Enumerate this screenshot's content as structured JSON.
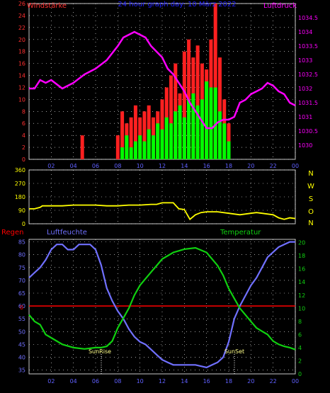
{
  "header": {
    "left_label": "Windstärke",
    "title": "24 hour graph day: 10 März 2022",
    "right_label": "Luftdruck"
  },
  "colors": {
    "background": "#000000",
    "frame": "#c8c8c8",
    "grid": "#ffffff",
    "wind_axis": "#ff3030",
    "pressure": "#ff00ff",
    "gust": "#ff2020",
    "wind_avg": "#00ff00",
    "direction": "#ffff00",
    "humidity": "#7070ff",
    "temperature": "#10d010",
    "rain": "#ff0000",
    "title": "#2020ff"
  },
  "x_ticks": [
    "02",
    "04",
    "06",
    "08",
    "10",
    "12",
    "14",
    "16",
    "18",
    "20",
    "22",
    "00"
  ],
  "direction_panel": {
    "compass_labels": [
      "N",
      "W",
      "S",
      "O",
      "N"
    ]
  },
  "bottom_panel": {
    "rain_label": "Regen",
    "humidity_label": "Luftfeuchte",
    "temperature_label": "Temperatur",
    "rain_tick": "0",
    "sunrise_label": "SunRise",
    "sunset_label": "SunSet"
  },
  "chart_data": [
    {
      "type": "line",
      "panel": "wind_pressure",
      "title": "24 hour graph day: 10 März 2022",
      "x_unit": "hour",
      "xlim": [
        0,
        24
      ],
      "y_left": {
        "label": "Windstärke",
        "ylim": [
          0,
          26
        ],
        "ticks": [
          0,
          2,
          4,
          6,
          8,
          10,
          12,
          14,
          16,
          18,
          20,
          22,
          24,
          26
        ]
      },
      "y_right": {
        "label": "Luftdruck",
        "ylim": [
          1029.5,
          1035
        ],
        "ticks": [
          "1030",
          "1030.5",
          "1031",
          "1031.5",
          "1032",
          "1032.5",
          "1033",
          "1033.5",
          "1034",
          "1034.5"
        ]
      },
      "series": [
        {
          "name": "Luftdruck",
          "axis": "right",
          "x": [
            0,
            0.5,
            1,
            1.5,
            2,
            3,
            3.5,
            4,
            5,
            6,
            7,
            8,
            8.5,
            9,
            9.5,
            10,
            10.5,
            11,
            11.5,
            12,
            12.5,
            13,
            13.5,
            14,
            14.5,
            15,
            15.5,
            16,
            16.5,
            17,
            17.5,
            18,
            18.5,
            19,
            19.5,
            20,
            20.5,
            21,
            21.5,
            22,
            22.5,
            23,
            23.5,
            24
          ],
          "y": [
            1032,
            1032,
            1032.3,
            1032.2,
            1032.3,
            1032,
            1032.1,
            1032.2,
            1032.5,
            1032.7,
            1033,
            1033.5,
            1033.8,
            1033.9,
            1034,
            1033.9,
            1033.8,
            1033.5,
            1033.3,
            1033.1,
            1032.7,
            1032.5,
            1032.2,
            1031.9,
            1031.5,
            1031.2,
            1030.9,
            1030.6,
            1030.6,
            1030.8,
            1030.9,
            1030.9,
            1031,
            1031.5,
            1031.6,
            1031.8,
            1031.9,
            1032,
            1032.2,
            1032.1,
            1031.9,
            1031.8,
            1031.5,
            1031.4
          ]
        },
        {
          "name": "gust",
          "axis": "left",
          "x": [
            4.8,
            8.0,
            8.4,
            8.8,
            9.2,
            9.6,
            10,
            10.4,
            10.8,
            11.2,
            11.6,
            12,
            12.4,
            12.8,
            13.2,
            13.6,
            14,
            14.4,
            14.8,
            15.2,
            15.6,
            16,
            16.4,
            16.8,
            17.2,
            17.6,
            18
          ],
          "y": [
            4,
            4,
            8,
            6,
            7,
            9,
            7,
            8,
            9,
            7,
            8,
            10,
            12,
            14,
            16,
            11,
            18,
            20,
            17,
            19,
            16,
            15,
            20,
            26,
            17,
            10,
            6
          ]
        },
        {
          "name": "average",
          "axis": "left",
          "x": [
            8.4,
            8.8,
            9.2,
            9.6,
            10,
            10.4,
            10.8,
            11.2,
            11.6,
            12,
            12.4,
            12.8,
            13.2,
            13.6,
            14,
            14.4,
            14.8,
            15.2,
            15.6,
            16,
            16.4,
            16.8,
            17.2,
            17.6,
            18
          ],
          "y": [
            2,
            4,
            2,
            3,
            4,
            3,
            5,
            4,
            6,
            5,
            7,
            6,
            8,
            9,
            7,
            10,
            11,
            9,
            10,
            13,
            12,
            12,
            8,
            6,
            3
          ]
        }
      ]
    },
    {
      "type": "line",
      "panel": "wind_direction",
      "xlim": [
        0,
        24
      ],
      "ylim": [
        0,
        360
      ],
      "y_ticks": [
        "0",
        "90",
        "180",
        "270",
        "360"
      ],
      "series": [
        {
          "name": "direction",
          "x": [
            0,
            0.5,
            1,
            1.2,
            2,
            3,
            4,
            5,
            6,
            7,
            8,
            9,
            10,
            11,
            11.5,
            12,
            13,
            13.5,
            14,
            14.5,
            15,
            15.5,
            16,
            17,
            18,
            19,
            20,
            20.5,
            21,
            22,
            22.5,
            23,
            23.5,
            24
          ],
          "y": [
            100,
            100,
            110,
            120,
            120,
            120,
            125,
            125,
            125,
            120,
            120,
            125,
            125,
            130,
            130,
            140,
            140,
            100,
            95,
            30,
            60,
            75,
            80,
            80,
            70,
            60,
            70,
            75,
            70,
            60,
            40,
            30,
            40,
            35
          ]
        }
      ]
    },
    {
      "type": "line",
      "panel": "humidity_temperature",
      "xlim": [
        0,
        24
      ],
      "y_left": {
        "label": "Luftfeuchte",
        "ylim": [
          33.5,
          86
        ],
        "ticks": [
          35,
          40,
          45,
          50,
          55,
          60,
          65,
          70,
          75,
          80,
          85
        ]
      },
      "y_right": {
        "label": "Temperatur",
        "ylim": [
          0,
          20.5
        ],
        "ticks": [
          0,
          2,
          4,
          6,
          8,
          10,
          12,
          14,
          16,
          18,
          20
        ]
      },
      "series": [
        {
          "name": "Luftfeuchte",
          "axis": "left",
          "x": [
            0,
            0.5,
            1,
            1.5,
            2,
            2.5,
            3,
            3.5,
            4,
            4.5,
            5,
            5.5,
            6,
            6.5,
            7,
            7.5,
            8,
            8.5,
            9,
            9.5,
            10,
            10.5,
            11,
            11.5,
            12,
            12.5,
            13,
            14,
            15,
            16,
            16.5,
            17,
            17.5,
            18,
            18.5,
            19,
            19.5,
            20,
            20.5,
            21,
            21.5,
            22,
            22.5,
            23,
            23.5,
            24
          ],
          "y": [
            71,
            73,
            75,
            78,
            82,
            84,
            84,
            82,
            82,
            84,
            84,
            84,
            82,
            76,
            67,
            62,
            58,
            55,
            51,
            48,
            46,
            45,
            43,
            41,
            39,
            38,
            37,
            37,
            37,
            36,
            37,
            38,
            40,
            46,
            55,
            60,
            64,
            68,
            71,
            75,
            79,
            81,
            83,
            84,
            85,
            85
          ]
        },
        {
          "name": "Temperatur",
          "axis": "right",
          "x": [
            0,
            0.5,
            1,
            1.5,
            2,
            3,
            4,
            5,
            6,
            6.5,
            7,
            7.5,
            8,
            8.5,
            9,
            9.5,
            10,
            10.5,
            11,
            11.5,
            12,
            13,
            14,
            15,
            16,
            16.5,
            17,
            17.5,
            18,
            18.5,
            19,
            19.5,
            20,
            20.5,
            21,
            21.5,
            22,
            22.5,
            23,
            23.5,
            24
          ],
          "y": [
            9,
            8,
            7.5,
            6,
            5.5,
            4.5,
            4,
            3.8,
            4,
            4,
            4.2,
            5,
            7,
            8.5,
            10,
            12,
            13.5,
            14.5,
            15.5,
            16.5,
            17.5,
            18.5,
            19,
            19.2,
            18.5,
            17.5,
            16.5,
            15,
            13,
            11.5,
            10,
            9,
            8,
            7,
            6.5,
            6,
            5,
            4.5,
            4.2,
            4,
            3.7
          ]
        },
        {
          "name": "Regen",
          "axis": "left",
          "x": [
            0,
            24
          ],
          "y": [
            60,
            60
          ]
        }
      ]
    }
  ]
}
